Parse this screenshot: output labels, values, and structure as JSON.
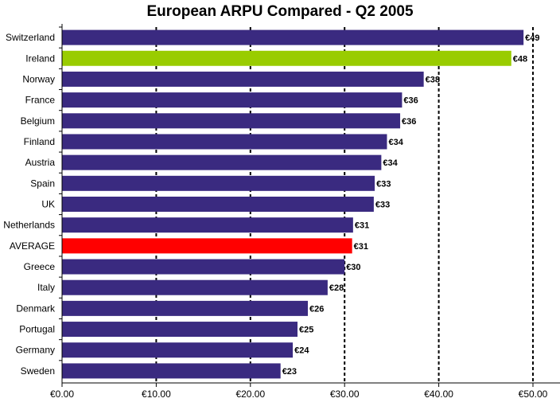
{
  "chart_data": {
    "type": "bar",
    "orientation": "horizontal",
    "title": "European ARPU Compared - Q2 2005",
    "xlabel": "",
    "ylabel": "",
    "xlim": [
      0,
      50
    ],
    "x_ticks": [
      "€0.00",
      "€10.00",
      "€20.00",
      "€30.00",
      "€40.00",
      "€50.00"
    ],
    "categories": [
      "Switzerland",
      "Ireland",
      "Norway",
      "France",
      "Belgium",
      "Finland",
      "Austria",
      "Spain",
      "UK",
      "Netherlands",
      "AVERAGE",
      "Greece",
      "Italy",
      "Denmark",
      "Portugal",
      "Germany",
      "Sweden"
    ],
    "values": [
      49,
      47.7,
      38.4,
      36.1,
      35.9,
      34.5,
      33.9,
      33.2,
      33.1,
      30.9,
      30.8,
      30.0,
      28.2,
      26.1,
      25.0,
      24.5,
      23.2
    ],
    "data_labels": [
      "€49",
      "€48",
      "€38",
      "€36",
      "€36",
      "€34",
      "€34",
      "€33",
      "€33",
      "€31",
      "€31",
      "€30",
      "€28",
      "€26",
      "€25",
      "€24",
      "€23"
    ],
    "bar_colors": [
      "#3a2a80",
      "#99cc00",
      "#3a2a80",
      "#3a2a80",
      "#3a2a80",
      "#3a2a80",
      "#3a2a80",
      "#3a2a80",
      "#3a2a80",
      "#3a2a80",
      "#ff0000",
      "#3a2a80",
      "#3a2a80",
      "#3a2a80",
      "#3a2a80",
      "#3a2a80",
      "#3a2a80"
    ],
    "grid": "vertical dashed",
    "legend": "none"
  }
}
